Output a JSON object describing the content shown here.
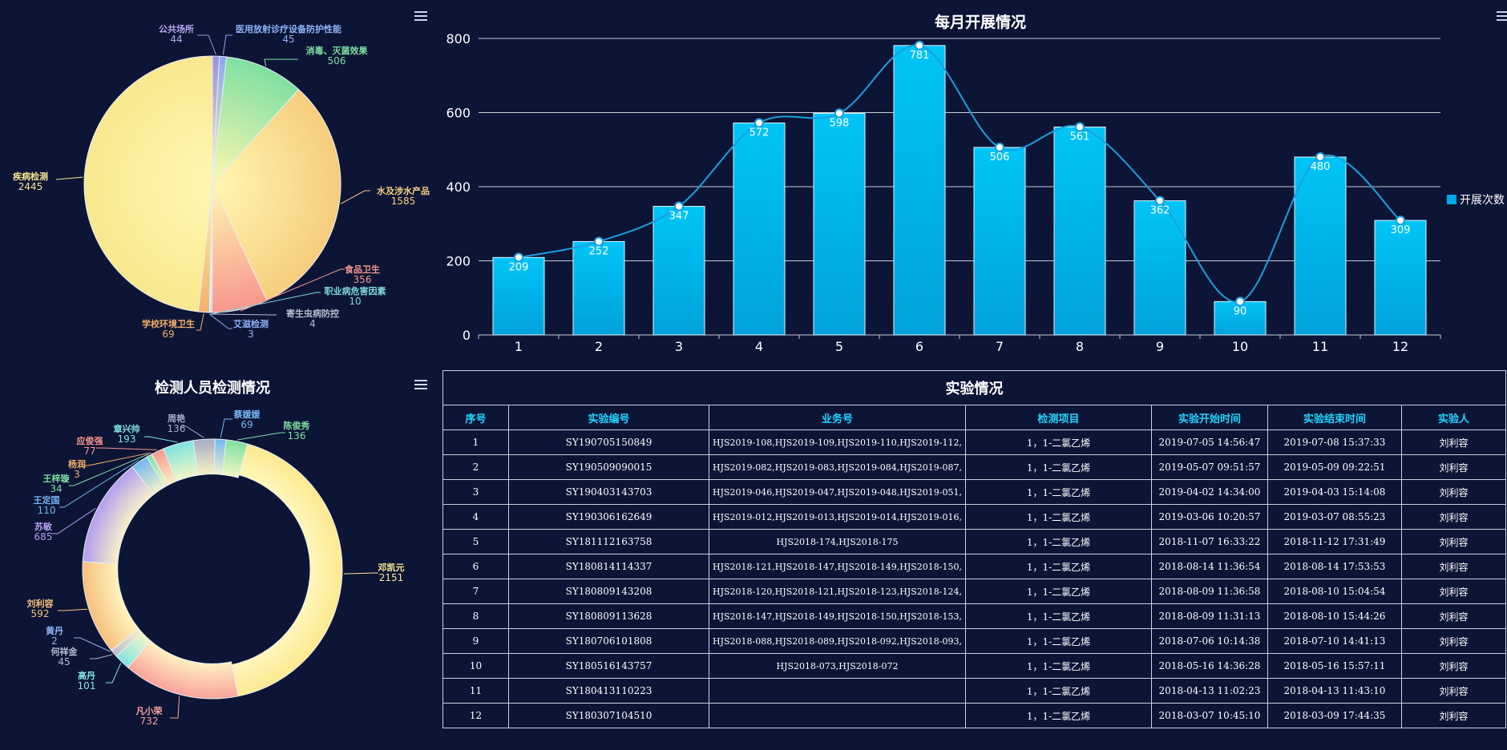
{
  "pie1": {
    "chart_data": {
      "type": "pie",
      "title": "",
      "slices": [
        {
          "name": "疾病检测",
          "value": 2445,
          "color": "#f8e88f"
        },
        {
          "name": "公共场所",
          "value": 44,
          "color": "#9b8fe3"
        },
        {
          "name": "医用放射诊疗设备防护性能",
          "value": 45,
          "color": "#8aa7ee"
        },
        {
          "name": "消毒、灭菌效果",
          "value": 506,
          "color": "#7fe0a2"
        },
        {
          "name": "水及涉水产品",
          "value": 1585,
          "color": "#f6cd7e"
        },
        {
          "name": "食品卫生",
          "value": 356,
          "color": "#f7978e"
        },
        {
          "name": "职业病危害因素",
          "value": 10,
          "color": "#7ed6d9"
        },
        {
          "name": "寄生虫病防控",
          "value": 4,
          "color": "#b8bcd0"
        },
        {
          "name": "艾滋检测",
          "value": 3,
          "color": "#8aa7ee"
        },
        {
          "name": "学校环境卫生",
          "value": 69,
          "color": "#f3b06a"
        }
      ]
    },
    "label_colors": [
      "#f8e88f",
      "#b9a6f2",
      "#8fb1f5",
      "#7fe0a2",
      "#f6cd7e",
      "#f7978e",
      "#7ed6d9",
      "#b8bcd0",
      "#8fb1f5",
      "#f3b06a"
    ]
  },
  "bar": {
    "chart_data": {
      "type": "bar",
      "title": "每月开展情况",
      "categories": [
        "1",
        "2",
        "3",
        "4",
        "5",
        "6",
        "7",
        "8",
        "9",
        "10",
        "11",
        "12"
      ],
      "series": [
        {
          "name": "开展次数",
          "values": [
            209,
            252,
            347,
            572,
            598,
            781,
            506,
            561,
            362,
            90,
            480,
            309
          ]
        }
      ],
      "ylim": [
        0,
        800
      ],
      "yticks": [
        0,
        200,
        400,
        600,
        800
      ],
      "grid": true,
      "legend": "right",
      "overlay_line": true,
      "bar_color": "#00b4ef",
      "line_color": "#1a9fe0"
    }
  },
  "donut": {
    "chart_data": {
      "type": "pie",
      "title": "检测人员检测情况",
      "slices": [
        {
          "name": "邓凯元",
          "value": 2151,
          "color": "#fbe990"
        },
        {
          "name": "凡小荣",
          "value": 732,
          "color": "#f9a29a"
        },
        {
          "name": "高丹",
          "value": 101,
          "color": "#84e3e0"
        },
        {
          "name": "何祥金",
          "value": 45,
          "color": "#b8bcd0"
        },
        {
          "name": "黄丹",
          "value": 2,
          "color": "#8fb1f5"
        },
        {
          "name": "刘利容",
          "value": 592,
          "color": "#f6c07c"
        },
        {
          "name": "苏敏",
          "value": 685,
          "color": "#b39df0"
        },
        {
          "name": "王定国",
          "value": 110,
          "color": "#73b7f2"
        },
        {
          "name": "王梓璇",
          "value": 34,
          "color": "#7fe0a2"
        },
        {
          "name": "杨润",
          "value": 3,
          "color": "#f3b06a"
        },
        {
          "name": "应俊强",
          "value": 77,
          "color": "#f7978e"
        },
        {
          "name": "章兴帅",
          "value": 193,
          "color": "#7ee3e0"
        },
        {
          "name": "周艳",
          "value": 136,
          "color": "#a7adc6"
        },
        {
          "name": "蔡媛媛",
          "value": 69,
          "color": "#73b7f2"
        },
        {
          "name": "陈俊秀",
          "value": 136,
          "color": "#7fe0a2"
        }
      ]
    }
  },
  "table": {
    "title": "实验情况",
    "headers": [
      "序号",
      "实验编号",
      "业务号",
      "检测项目",
      "实验开始时间",
      "实验结束时间",
      "实验人"
    ],
    "rows": [
      [
        "1",
        "SY190705150849",
        "HJS2019-108,HJS2019-109,HJS2019-110,HJS2019-112,",
        "1，1-二氯乙烯",
        "2019-07-05 14:56:47",
        "2019-07-08 15:37:33",
        "刘利容"
      ],
      [
        "2",
        "SY190509090015",
        "HJS2019-082,HJS2019-083,HJS2019-084,HJS2019-087,",
        "1，1-二氯乙烯",
        "2019-05-07 09:51:57",
        "2019-05-09 09:22:51",
        "刘利容"
      ],
      [
        "3",
        "SY190403143703",
        "HJS2019-046,HJS2019-047,HJS2019-048,HJS2019-051,",
        "1，1-二氯乙烯",
        "2019-04-02 14:34:00",
        "2019-04-03 15:14:08",
        "刘利容"
      ],
      [
        "4",
        "SY190306162649",
        "HJS2019-012,HJS2019-013,HJS2019-014,HJS2019-016,",
        "1，1-二氯乙烯",
        "2019-03-06 10:20:57",
        "2019-03-07 08:55:23",
        "刘利容"
      ],
      [
        "5",
        "SY181112163758",
        "HJS2018-174,HJS2018-175",
        "1，1-二氯乙烯",
        "2018-11-07 16:33:22",
        "2018-11-12 17:31:49",
        "刘利容"
      ],
      [
        "6",
        "SY180814114337",
        "HJS2018-121,HJS2018-147,HJS2018-149,HJS2018-150,",
        "1，1-二氯乙烯",
        "2018-08-14 11:36:54",
        "2018-08-14 17:53:53",
        "刘利容"
      ],
      [
        "7",
        "SY180809143208",
        "HJS2018-120,HJS2018-121,HJS2018-123,HJS2018-124,",
        "1，1-二氯乙烯",
        "2018-08-09 11:36:58",
        "2018-08-10 15:04:54",
        "刘利容"
      ],
      [
        "8",
        "SY180809113628",
        "HJS2018-147,HJS2018-149,HJS2018-150,HJS2018-153,",
        "1，1-二氯乙烯",
        "2018-08-09 11:31:13",
        "2018-08-10 15:44:26",
        "刘利容"
      ],
      [
        "9",
        "SY180706101808",
        "HJS2018-088,HJS2018-089,HJS2018-092,HJS2018-093,",
        "1，1-二氯乙烯",
        "2018-07-06 10:14:38",
        "2018-07-10 14:41:13",
        "刘利容"
      ],
      [
        "10",
        "SY180516143757",
        "HJS2018-073,HJS2018-072",
        "1，1-二氯乙烯",
        "2018-05-16 14:36:28",
        "2018-05-16 15:57:11",
        "刘利容"
      ],
      [
        "11",
        "SY180413110223",
        "",
        "1，1-二氯乙烯",
        "2018-04-13 11:02:23",
        "2018-04-13 11:43:10",
        "刘利容"
      ],
      [
        "12",
        "SY180307104510",
        "",
        "1，1-二氯乙烯",
        "2018-03-07 10:45:10",
        "2018-03-09 17:44:35",
        "刘利容"
      ]
    ]
  },
  "icons": {
    "menu": "hamburger-menu-icon"
  }
}
